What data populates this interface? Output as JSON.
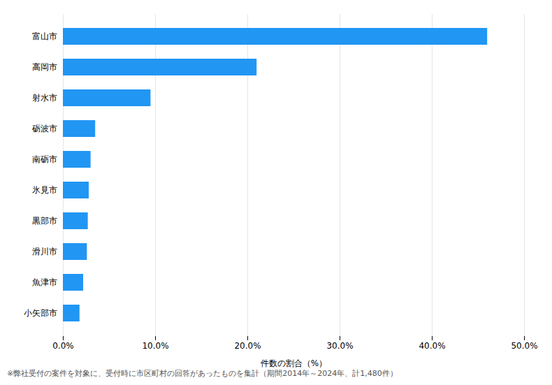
{
  "chart_data": {
    "type": "bar",
    "orientation": "horizontal",
    "categories": [
      "富山市",
      "高岡市",
      "射水市",
      "砺波市",
      "南砺市",
      "氷見市",
      "黒部市",
      "滑川市",
      "魚津市",
      "小矢部市"
    ],
    "values": [
      46.0,
      21.0,
      9.5,
      3.5,
      3.0,
      2.8,
      2.7,
      2.6,
      2.2,
      1.8
    ],
    "color": "#2196F3",
    "xlabel": "件数の割合（%）",
    "xlim": [
      0,
      50
    ],
    "xticks": [
      {
        "value": 0,
        "label": "0.0%"
      },
      {
        "value": 10,
        "label": "10.0%"
      },
      {
        "value": 20,
        "label": "20.0%"
      },
      {
        "value": 30,
        "label": "30.0%"
      },
      {
        "value": 40,
        "label": "40.0%"
      },
      {
        "value": 50,
        "label": "50.0%"
      }
    ],
    "grid": "x",
    "annotations": [
      "※弊社受付の案件を対象に、受付時に市区町村の回答があったものを集計（期間2014年～2024年、計1,480件）"
    ]
  }
}
